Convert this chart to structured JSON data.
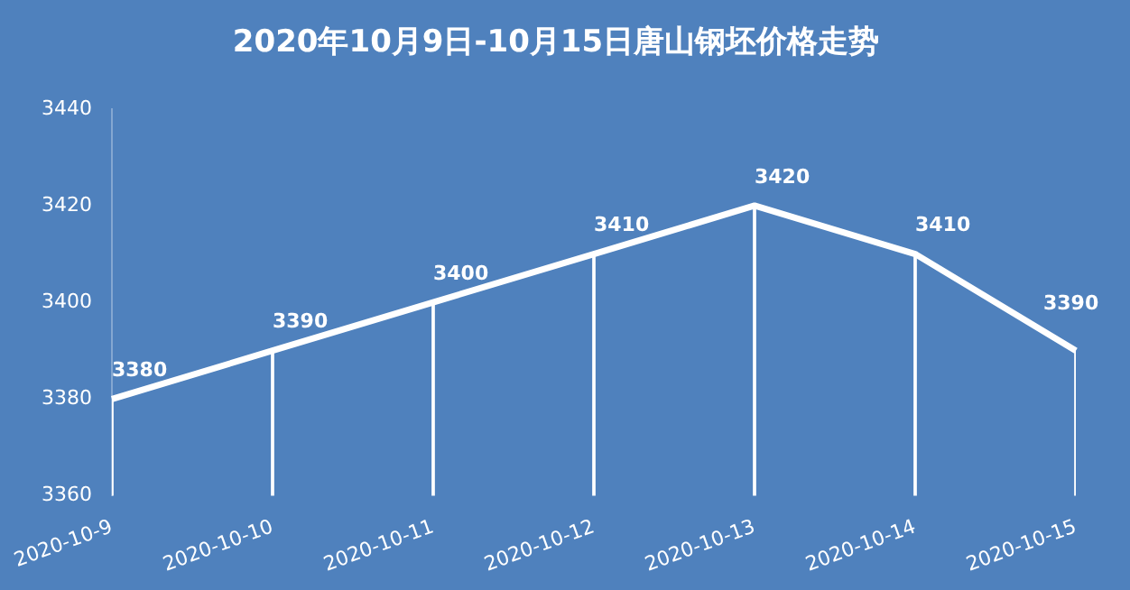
{
  "chart_data": {
    "type": "line",
    "title": "2020年10月9日-10月15日唐山钢坯价格走势",
    "categories": [
      "2020-10-9",
      "2020-10-10",
      "2020-10-11",
      "2020-10-12",
      "2020-10-13",
      "2020-10-14",
      "2020-10-15"
    ],
    "series": [
      {
        "color": "#ffffff",
        "values": [
          3380,
          3390,
          3400,
          3410,
          3420,
          3410,
          3390
        ],
        "value_labels": [
          "3380",
          "3390",
          "3400",
          "3410",
          "3420",
          "3410",
          "3390"
        ]
      },
      {
        "type": "bar",
        "color": "#ffffff",
        "values": [
          3380,
          3390,
          3400,
          3410,
          3420,
          3410,
          3390
        ]
      }
    ],
    "ylim": [
      3360,
      3440
    ],
    "yticks": [
      3360,
      3380,
      3400,
      3420,
      3440
    ],
    "grid": false,
    "legend": false,
    "marker": "none"
  }
}
